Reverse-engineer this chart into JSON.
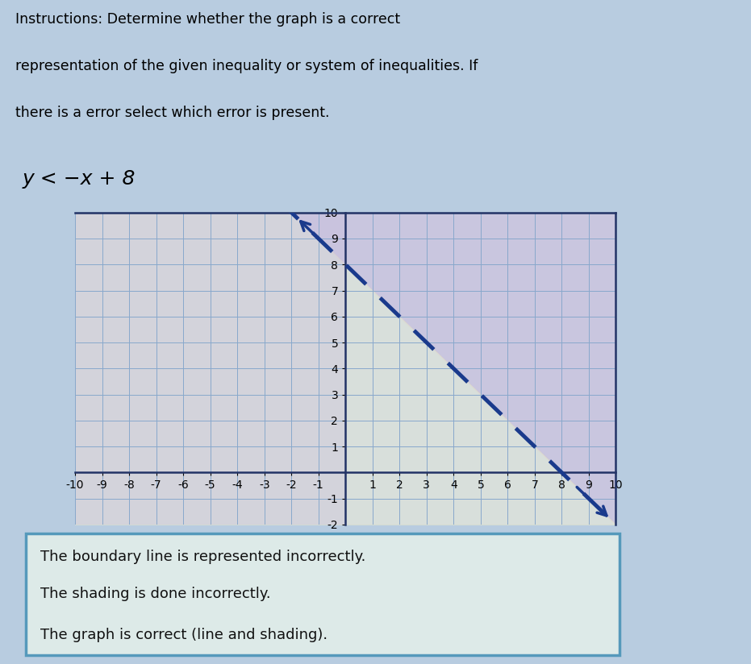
{
  "title_line1": "Instructions: Determine whether the graph is a correct",
  "title_line2": "representation of the given inequality or system of inequalities. If",
  "title_line3": "there is a error select which error is present.",
  "inequality_label": "y < −x + 8",
  "slope": -1,
  "intercept": 8,
  "x_min": -10,
  "x_max": 10,
  "y_min": -2,
  "y_max": 10,
  "graph_y_display_min": -1,
  "graph_y_display_max": 10,
  "page_bg": "#b8cce0",
  "grid_bg_left": "#d8cce0",
  "grid_bg_right": "#e8e8d8",
  "grid_color": "#88a8cc",
  "line_color": "#1a3a8c",
  "line_width": 3.5,
  "arrow_color": "#1a3a8c",
  "box_bg": "#e0ecec",
  "box_border": "#5599bb",
  "choices": [
    "The boundary line is represented incorrectly.",
    "The shading is done incorrectly.",
    "The graph is correct (line and shading)."
  ]
}
